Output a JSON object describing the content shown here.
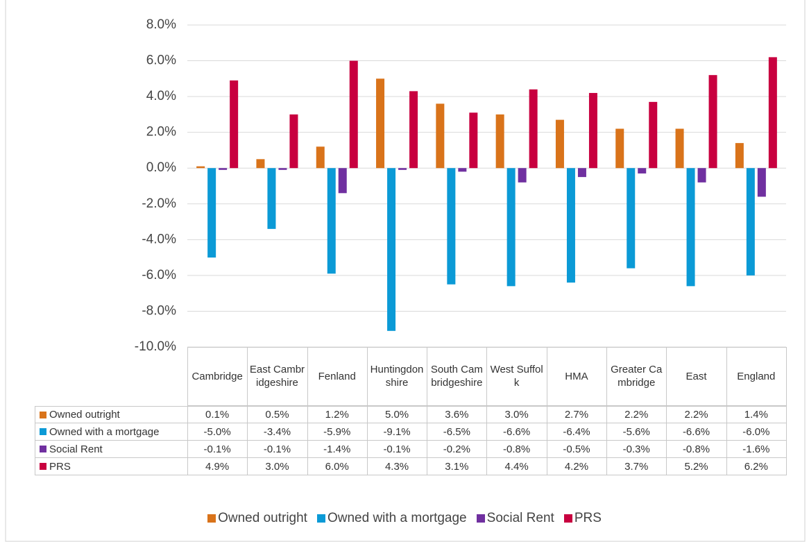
{
  "chart_data": {
    "type": "bar",
    "categories": [
      "Cambridge",
      "East Cambridgeshire",
      "Fenland",
      "Huntingdonshire",
      "South Cambridgeshire",
      "West Suffolk",
      "HMA",
      "Greater Cambridge",
      "East",
      "England"
    ],
    "series": [
      {
        "name": "Owned outright",
        "color": "#d9731a",
        "values": [
          0.1,
          0.5,
          1.2,
          5.0,
          3.6,
          3.0,
          2.7,
          2.2,
          2.2,
          1.4
        ],
        "value_labels": [
          "0.1%",
          "0.5%",
          "1.2%",
          "5.0%",
          "3.6%",
          "3.0%",
          "2.7%",
          "2.2%",
          "2.2%",
          "1.4%"
        ]
      },
      {
        "name": "Owned with a mortgage",
        "color": "#0b9ad6",
        "values": [
          -5.0,
          -3.4,
          -5.9,
          -9.1,
          -6.5,
          -6.6,
          -6.4,
          -5.6,
          -6.6,
          -6.0
        ],
        "value_labels": [
          "-5.0%",
          "-3.4%",
          "-5.9%",
          "-9.1%",
          "-6.5%",
          "-6.6%",
          "-6.4%",
          "-5.6%",
          "-6.6%",
          "-6.0%"
        ]
      },
      {
        "name": "Social Rent",
        "color": "#7030a0",
        "values": [
          -0.1,
          -0.1,
          -1.4,
          -0.1,
          -0.2,
          -0.8,
          -0.5,
          -0.3,
          -0.8,
          -1.6
        ],
        "value_labels": [
          "-0.1%",
          "-0.1%",
          "-1.4%",
          "-0.1%",
          "-0.2%",
          "-0.8%",
          "-0.5%",
          "-0.3%",
          "-0.8%",
          "-1.6%"
        ]
      },
      {
        "name": "PRS",
        "color": "#c8003f",
        "values": [
          4.9,
          3.0,
          6.0,
          4.3,
          3.1,
          4.4,
          4.2,
          3.7,
          5.2,
          6.2
        ],
        "value_labels": [
          "4.9%",
          "3.0%",
          "6.0%",
          "4.3%",
          "3.1%",
          "4.4%",
          "4.2%",
          "3.7%",
          "5.2%",
          "6.2%"
        ]
      }
    ],
    "ylim": [
      -10,
      8
    ],
    "yticks": [
      {
        "value": -10,
        "label": "-10.0%"
      },
      {
        "value": -8,
        "label": "-8.0%"
      },
      {
        "value": -6,
        "label": "-6.0%"
      },
      {
        "value": -4,
        "label": "-4.0%"
      },
      {
        "value": -2,
        "label": "-2.0%"
      },
      {
        "value": 0,
        "label": "0.0%"
      },
      {
        "value": 2,
        "label": "2.0%"
      },
      {
        "value": 4,
        "label": "4.0%"
      },
      {
        "value": 6,
        "label": "6.0%"
      },
      {
        "value": 8,
        "label": "8.0%"
      }
    ],
    "grid": true,
    "legend": "bottom"
  }
}
